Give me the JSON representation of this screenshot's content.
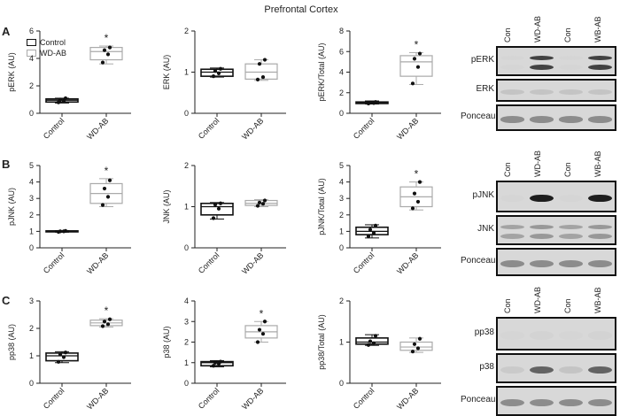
{
  "figure_title": "Prefrontal Cortex",
  "panel_letters": [
    "A",
    "B",
    "C"
  ],
  "legend": {
    "items": [
      {
        "label": "Control",
        "color": "#111111"
      },
      {
        "label": "WD-AB",
        "color": "#aaaaaa"
      }
    ]
  },
  "colors": {
    "control": "#111111",
    "wdab": "#aaaaaa",
    "points": "#111111",
    "axis": "#222222"
  },
  "significance_marker": "*",
  "chart_data": [
    {
      "type": "box",
      "id": "pERK",
      "ylabel": "pERK (AU)",
      "categories": [
        "Control",
        "WD-AB"
      ],
      "ylim": [
        0,
        6
      ],
      "yticks": [
        0,
        2,
        4,
        6
      ],
      "boxes": [
        {
          "min": 0.75,
          "q1": 0.82,
          "median": 0.95,
          "q3": 1.05,
          "max": 1.1
        },
        {
          "min": 3.6,
          "q1": 3.9,
          "median": 4.5,
          "q3": 4.8,
          "max": 4.9
        }
      ],
      "points": [
        [
          0.8,
          0.9,
          1.0,
          1.1
        ],
        [
          3.7,
          4.3,
          4.6,
          4.8
        ]
      ],
      "significant": [
        false,
        true
      ]
    },
    {
      "type": "box",
      "id": "ERK",
      "ylabel": "ERK (AU)",
      "categories": [
        "Control",
        "WD-AB"
      ],
      "ylim": [
        0,
        2
      ],
      "yticks": [
        0,
        1,
        2
      ],
      "boxes": [
        {
          "min": 0.88,
          "q1": 0.9,
          "median": 1.0,
          "q3": 1.07,
          "max": 1.1
        },
        {
          "min": 0.8,
          "q1": 0.83,
          "median": 1.0,
          "q3": 1.2,
          "max": 1.3
        }
      ],
      "points": [
        [
          0.9,
          0.97,
          1.03,
          1.08
        ],
        [
          0.82,
          0.88,
          1.2,
          1.3
        ]
      ],
      "significant": [
        false,
        false
      ]
    },
    {
      "type": "box",
      "id": "pERK-total",
      "ylabel": "pERK/Total (AU)",
      "categories": [
        "Control",
        "WD-AB"
      ],
      "ylim": [
        0,
        8
      ],
      "yticks": [
        0,
        2,
        4,
        6,
        8
      ],
      "boxes": [
        {
          "min": 0.9,
          "q1": 0.95,
          "median": 1.05,
          "q3": 1.1,
          "max": 1.2
        },
        {
          "min": 2.8,
          "q1": 3.6,
          "median": 5.0,
          "q3": 5.6,
          "max": 5.9
        }
      ],
      "points": [
        [
          0.95,
          1.0,
          1.05,
          1.1
        ],
        [
          2.9,
          4.5,
          5.3,
          5.8
        ]
      ],
      "significant": [
        false,
        true
      ]
    },
    {
      "type": "box",
      "id": "pJNK",
      "ylabel": "pJNK (AU)",
      "categories": [
        "Control",
        "WD-AB"
      ],
      "ylim": [
        0,
        5
      ],
      "yticks": [
        0,
        1,
        2,
        3,
        4,
        5
      ],
      "boxes": [
        {
          "min": 0.95,
          "q1": 0.97,
          "median": 1.0,
          "q3": 1.03,
          "max": 1.05
        },
        {
          "min": 2.5,
          "q1": 2.7,
          "median": 3.3,
          "q3": 3.9,
          "max": 4.2
        }
      ],
      "points": [
        [
          0.97,
          1.0,
          1.0,
          1.03
        ],
        [
          2.6,
          3.1,
          3.6,
          4.1
        ]
      ],
      "significant": [
        false,
        true
      ]
    },
    {
      "type": "box",
      "id": "JNK",
      "ylabel": "JNK (AU)",
      "categories": [
        "Control",
        "WD-AB"
      ],
      "ylim": [
        0,
        2
      ],
      "yticks": [
        0,
        1,
        2
      ],
      "boxes": [
        {
          "min": 0.7,
          "q1": 0.8,
          "median": 1.0,
          "q3": 1.08,
          "max": 1.1
        },
        {
          "min": 1.0,
          "q1": 1.03,
          "median": 1.08,
          "q3": 1.15,
          "max": 1.17
        }
      ],
      "points": [
        [
          0.72,
          0.95,
          1.05,
          1.08
        ],
        [
          1.02,
          1.07,
          1.1,
          1.15
        ]
      ],
      "significant": [
        false,
        false
      ]
    },
    {
      "type": "box",
      "id": "pJNK-total",
      "ylabel": "pJNK/Total (AU)",
      "categories": [
        "Control",
        "WD-AB"
      ],
      "ylim": [
        0,
        5
      ],
      "yticks": [
        0,
        1,
        2,
        3,
        4,
        5
      ],
      "boxes": [
        {
          "min": 0.6,
          "q1": 0.8,
          "median": 1.0,
          "q3": 1.25,
          "max": 1.4
        },
        {
          "min": 2.3,
          "q1": 2.5,
          "median": 3.1,
          "q3": 3.7,
          "max": 4.0
        }
      ],
      "points": [
        [
          0.7,
          0.9,
          1.1,
          1.35
        ],
        [
          2.4,
          2.8,
          3.3,
          4.0
        ]
      ],
      "significant": [
        false,
        true
      ]
    },
    {
      "type": "box",
      "id": "pp38",
      "ylabel": "pp38 (AU)",
      "categories": [
        "Control",
        "WD-AB"
      ],
      "ylim": [
        0,
        3
      ],
      "yticks": [
        0,
        1,
        2,
        3
      ],
      "boxes": [
        {
          "min": 0.75,
          "q1": 0.82,
          "median": 1.0,
          "q3": 1.1,
          "max": 1.15
        },
        {
          "min": 2.05,
          "q1": 2.1,
          "median": 2.2,
          "q3": 2.3,
          "max": 2.35
        }
      ],
      "points": [
        [
          0.78,
          0.95,
          1.05,
          1.12
        ],
        [
          2.08,
          2.15,
          2.25,
          2.33
        ]
      ],
      "significant": [
        false,
        true
      ]
    },
    {
      "type": "box",
      "id": "p38",
      "ylabel": "p38 (AU)",
      "categories": [
        "Control",
        "WD-AB"
      ],
      "ylim": [
        0,
        4
      ],
      "yticks": [
        0,
        1,
        2,
        3,
        4
      ],
      "boxes": [
        {
          "min": 0.8,
          "q1": 0.85,
          "median": 1.0,
          "q3": 1.05,
          "max": 1.1
        },
        {
          "min": 2.0,
          "q1": 2.2,
          "median": 2.5,
          "q3": 2.8,
          "max": 3.0
        }
      ],
      "points": [
        [
          0.85,
          0.95,
          1.0,
          1.05
        ],
        [
          2.0,
          2.4,
          2.6,
          3.0
        ]
      ],
      "significant": [
        false,
        true
      ]
    },
    {
      "type": "box",
      "id": "pp38-total",
      "ylabel": "pp38/Total (AU)",
      "categories": [
        "Control",
        "WD-AB"
      ],
      "ylim": [
        0,
        2
      ],
      "yticks": [
        0,
        1,
        2
      ],
      "boxes": [
        {
          "min": 0.92,
          "q1": 0.95,
          "median": 1.0,
          "q3": 1.1,
          "max": 1.18
        },
        {
          "min": 0.75,
          "q1": 0.8,
          "median": 0.88,
          "q3": 1.0,
          "max": 1.1
        }
      ],
      "points": [
        [
          0.93,
          0.97,
          1.02,
          1.15
        ],
        [
          0.77,
          0.85,
          0.95,
          1.08
        ]
      ],
      "significant": [
        false,
        false
      ]
    }
  ],
  "blots": [
    {
      "lane_labels": [
        "Con",
        "WD-AB",
        "Con",
        "WB-AB"
      ],
      "bands": [
        {
          "label": "pERK",
          "intensity": [
            0.05,
            0.85,
            0.05,
            0.85
          ],
          "double": true
        },
        {
          "label": "ERK",
          "intensity": [
            0.3,
            0.3,
            0.3,
            0.3
          ],
          "double": false
        },
        {
          "label": "Ponceau",
          "intensity": [
            0.6,
            0.6,
            0.6,
            0.6
          ],
          "double": false
        }
      ]
    },
    {
      "lane_labels": [
        "Con",
        "WD-AB",
        "Con",
        "WB-AB"
      ],
      "bands": [
        {
          "label": "pJNK",
          "intensity": [
            0.05,
            0.95,
            0.05,
            0.95
          ],
          "double": false
        },
        {
          "label": "JNK",
          "intensity": [
            0.5,
            0.55,
            0.5,
            0.55
          ],
          "double": true
        },
        {
          "label": "Ponceau",
          "intensity": [
            0.6,
            0.6,
            0.6,
            0.6
          ],
          "double": false
        }
      ]
    },
    {
      "lane_labels": [
        "Con",
        "WD-AB",
        "Con",
        "WB-AB"
      ],
      "bands": [
        {
          "label": "pp38",
          "intensity": [
            0.05,
            0.12,
            0.05,
            0.12
          ],
          "double": false
        },
        {
          "label": "p38",
          "intensity": [
            0.25,
            0.75,
            0.3,
            0.75
          ],
          "double": false
        },
        {
          "label": "Ponceau",
          "intensity": [
            0.6,
            0.6,
            0.6,
            0.6
          ],
          "double": false
        }
      ]
    }
  ]
}
